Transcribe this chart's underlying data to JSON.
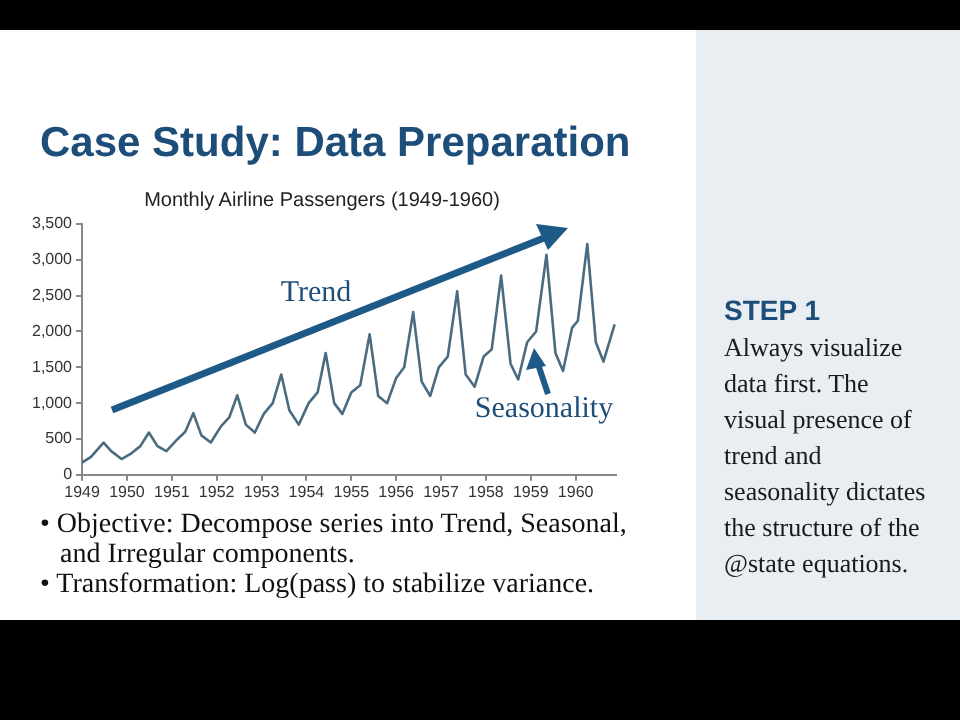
{
  "chart_data": {
    "type": "line",
    "title": "Case Study: Data Preparation",
    "subtitle": "Monthly Airline Passengers (1949-1960)",
    "annotations": [
      "Trend",
      "Seasonality",
      "• Objective: Decompose series into Trend, Seasonal, and Irregular components.",
      "• Transformation: Log(pass) to stabilize variance.",
      "STEP 1",
      "Always visualize\ndata first. The\nvisual presence of\ntrend and\nseasonality dictates\nthe structure of the\n@state equations."
    ],
    "x": [
      1949.0,
      1949.2,
      1949.48,
      1949.65,
      1949.88,
      1950.1,
      1950.3,
      1950.49,
      1950.68,
      1950.88,
      1951.1,
      1951.3,
      1951.48,
      1951.66,
      1951.87,
      1952.1,
      1952.28,
      1952.46,
      1952.65,
      1952.85,
      1953.05,
      1953.25,
      1953.44,
      1953.62,
      1953.83,
      1954.05,
      1954.25,
      1954.43,
      1954.62,
      1954.8,
      1955.0,
      1955.2,
      1955.41,
      1955.6,
      1955.8,
      1956.0,
      1956.18,
      1956.38,
      1956.57,
      1956.76,
      1956.95,
      1957.15,
      1957.36,
      1957.55,
      1957.75,
      1957.95,
      1958.13,
      1958.34,
      1958.55,
      1958.72,
      1958.92,
      1959.12,
      1959.35,
      1959.55,
      1959.72,
      1959.92,
      1960.05,
      1960.26,
      1960.45,
      1960.62,
      1960.87
    ],
    "series": [
      {
        "color": "#4a6b80",
        "values": [
          170,
          250,
          450,
          330,
          220,
          300,
          400,
          590,
          400,
          330,
          480,
          600,
          860,
          550,
          450,
          680,
          800,
          1110,
          700,
          590,
          850,
          1000,
          1400,
          900,
          700,
          1000,
          1150,
          1700,
          1000,
          850,
          1150,
          1250,
          1960,
          1100,
          1000,
          1350,
          1500,
          2270,
          1300,
          1100,
          1500,
          1650,
          2560,
          1400,
          1230,
          1650,
          1750,
          2780,
          1550,
          1330,
          1850,
          2000,
          3070,
          1700,
          1450,
          2050,
          2150,
          3220,
          1850,
          1580,
          2100
        ]
      }
    ],
    "xlim": [
      1949,
      1960.9
    ],
    "xticks": [
      1949,
      1950,
      1951,
      1952,
      1953,
      1954,
      1955,
      1956,
      1957,
      1958,
      1959,
      1960
    ],
    "ylim": [
      0,
      3500
    ],
    "yticks": [
      0,
      500,
      {
        "value": 1000,
        "label": "1,000"
      },
      {
        "value": 1500,
        "label": "1,500"
      },
      {
        "value": 2000,
        "label": "2,000"
      },
      {
        "value": 2500,
        "label": "2,500"
      },
      {
        "value": 3000,
        "label": "3,000"
      },
      {
        "value": 3500,
        "label": "3,500"
      }
    ],
    "grid": false,
    "legend": false,
    "marker": "none",
    "line_style": "solid"
  }
}
